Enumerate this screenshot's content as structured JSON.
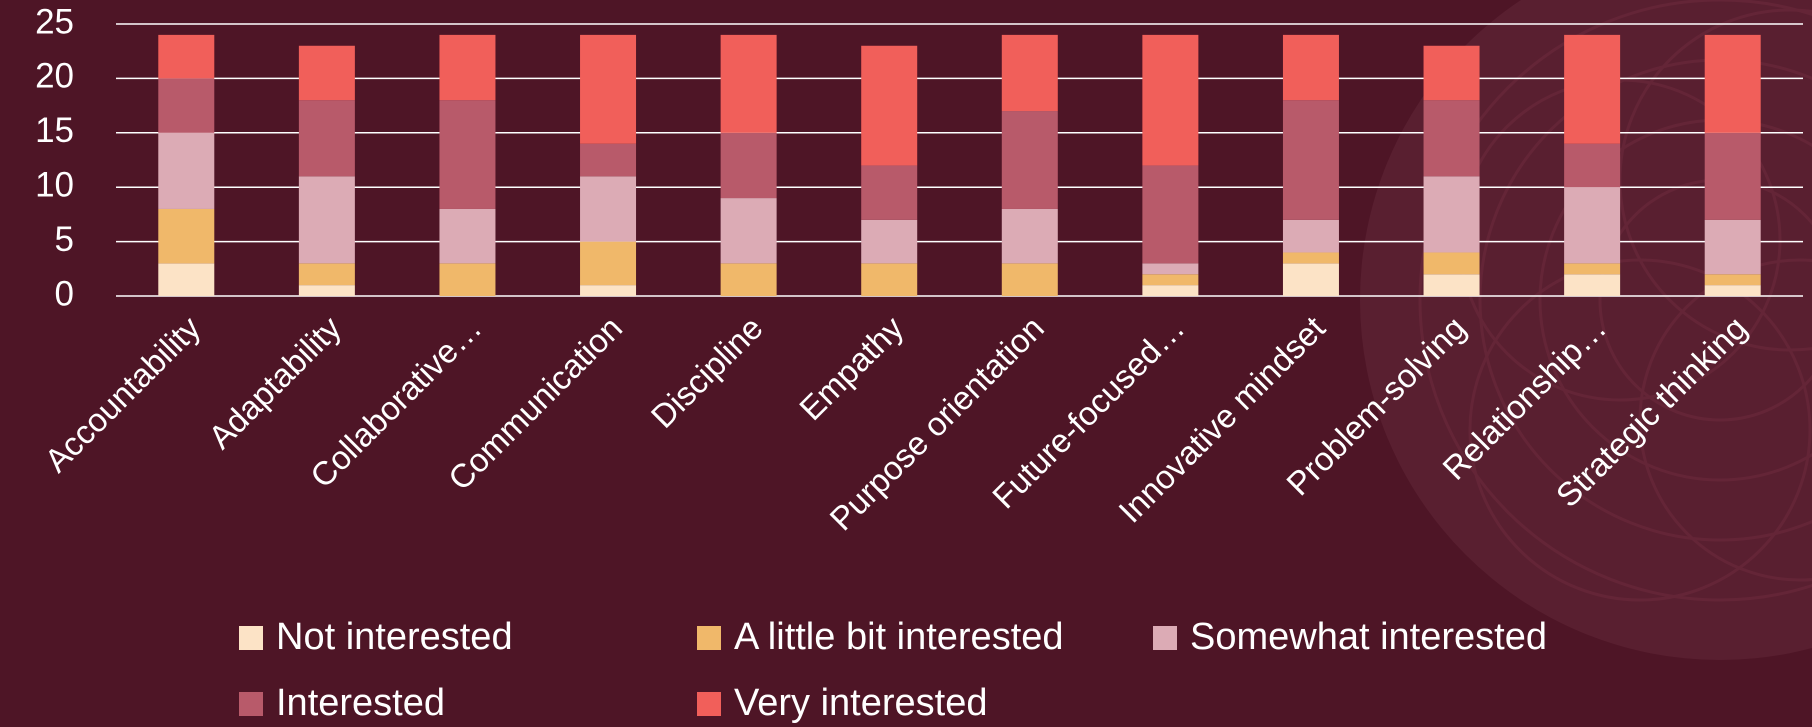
{
  "chart_data": {
    "type": "stacked-bar",
    "categories": [
      "Accountability",
      "Adaptability",
      "Collaborative…",
      "Communication",
      "Discipline",
      "Empathy",
      "Purpose orientation",
      "Future-focused…",
      "Innovative mindset",
      "Problem-solving",
      "Relationship…",
      "Strategic thinking"
    ],
    "series": [
      {
        "name": "Not interested",
        "color": "#fce3c6",
        "values": [
          3,
          1,
          0,
          1,
          0,
          0,
          0,
          1,
          3,
          2,
          2,
          1
        ]
      },
      {
        "name": "A little bit interested",
        "color": "#f0b86a",
        "values": [
          5,
          2,
          3,
          4,
          3,
          3,
          3,
          1,
          1,
          2,
          1,
          1
        ]
      },
      {
        "name": "Somewhat interested",
        "color": "#dcabb5",
        "values": [
          7,
          8,
          5,
          6,
          6,
          4,
          5,
          1,
          3,
          7,
          7,
          5
        ]
      },
      {
        "name": "Interested",
        "color": "#b85a6a",
        "values": [
          5,
          7,
          10,
          3,
          6,
          5,
          9,
          9,
          11,
          7,
          4,
          8
        ]
      },
      {
        "name": "Very interested",
        "color": "#f15f5a",
        "values": [
          4,
          5,
          6,
          10,
          9,
          11,
          7,
          12,
          6,
          5,
          10,
          9
        ]
      }
    ],
    "ylim": [
      0,
      25
    ],
    "yticks": [
      0,
      5,
      10,
      15,
      20,
      25
    ],
    "grid": true,
    "legend": "bottom"
  }
}
